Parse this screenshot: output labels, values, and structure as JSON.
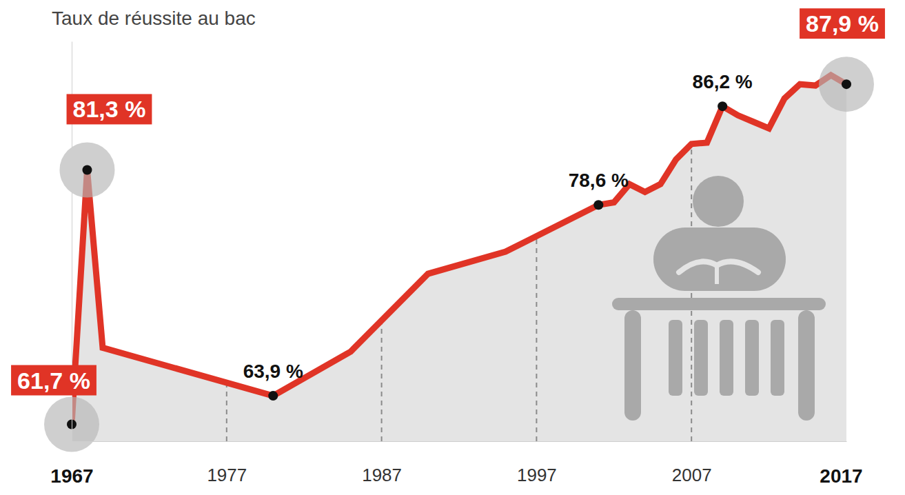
{
  "chart_data": {
    "type": "line",
    "title": "Taux de réussite au bac",
    "x": [
      1967,
      1968,
      1969,
      1980,
      1985,
      1990,
      1995,
      2001,
      2002,
      2003,
      2004,
      2005,
      2006,
      2007,
      2008,
      2009,
      2010,
      2011,
      2012,
      2013,
      2014,
      2015,
      2016,
      2017
    ],
    "values": [
      61.7,
      81.3,
      67.6,
      63.9,
      67.3,
      73.3,
      75.0,
      78.6,
      78.8,
      80.2,
      79.6,
      80.2,
      82.1,
      83.3,
      83.4,
      86.2,
      85.5,
      85.0,
      84.5,
      86.8,
      87.9,
      87.8,
      88.6,
      87.9
    ],
    "value_labels": [
      "61,7 %",
      "81,3 %",
      null,
      "63,9 %",
      null,
      null,
      null,
      "78,6 %",
      null,
      null,
      null,
      null,
      null,
      null,
      null,
      "86,2 %",
      null,
      null,
      null,
      null,
      null,
      null,
      null,
      "87,9 %"
    ],
    "highlights": [
      1967,
      1968,
      2017
    ],
    "color": "#e03426",
    "data_labels": true,
    "xlim": [
      1967,
      2017
    ],
    "xticks": [
      1967,
      1977,
      1987,
      1997,
      2007,
      2017
    ],
    "ylim": [
      60.4,
      91.2
    ],
    "yticks": [],
    "grid": true,
    "tick_labels": "x"
  }
}
